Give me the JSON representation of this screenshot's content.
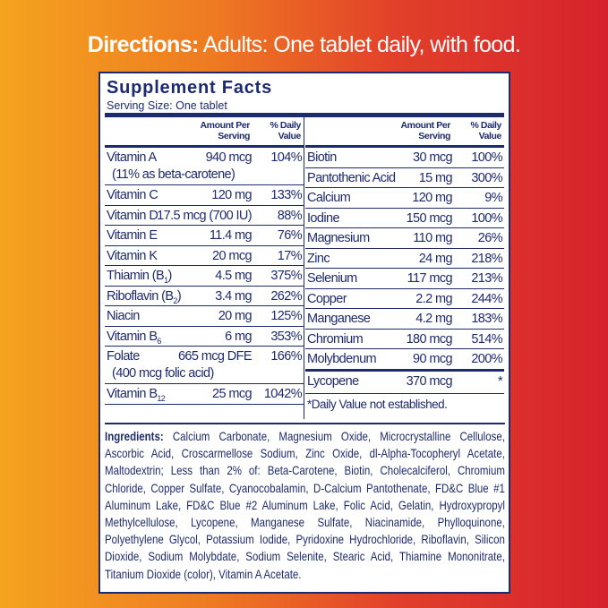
{
  "directions": {
    "label": "Directions:",
    "text": "Adults: One tablet daily, with food."
  },
  "panel": {
    "title": "Supplement Facts",
    "serving": "Serving Size: One tablet",
    "header": {
      "amount": "Amount Per",
      "amount2": "Serving",
      "dv": "% Daily",
      "dv2": "Value"
    },
    "left": [
      {
        "name": "Vitamin A",
        "amount": "940 mcg",
        "dv": "104%",
        "note": "(11% as beta-carotene)"
      },
      {
        "name": "Vitamin C",
        "amount": "120 mg",
        "dv": "133%"
      },
      {
        "name": "Vitamin D",
        "amount": "17.5 mcg (700 IU)",
        "dv": "88%"
      },
      {
        "name": "Vitamin E",
        "amount": "11.4 mg",
        "dv": "76%"
      },
      {
        "name": "Vitamin K",
        "amount": "20 mcg",
        "dv": "17%"
      },
      {
        "name": "Thiamin (B",
        "sub": "1",
        "close": ")",
        "amount": "4.5 mg",
        "dv": "375%"
      },
      {
        "name": "Riboflavin (B",
        "sub": "2",
        "close": ")",
        "amount": "3.4 mg",
        "dv": "262%"
      },
      {
        "name": "Niacin",
        "amount": "20 mg",
        "dv": "125%"
      },
      {
        "name": "Vitamin B",
        "sub": "6",
        "amount": "6 mg",
        "dv": "353%"
      },
      {
        "name": "Folate",
        "amount": "665 mcg DFE",
        "dv": "166%",
        "note": "(400 mcg folic acid)"
      },
      {
        "name": "Vitamin B",
        "sub": "12",
        "amount": "25 mcg",
        "dv": "1042%"
      }
    ],
    "right": [
      {
        "name": "Biotin",
        "amount": "30 mcg",
        "dv": "100%"
      },
      {
        "name": "Pantothenic Acid",
        "amount": "15 mg",
        "dv": "300%"
      },
      {
        "name": "Calcium",
        "amount": "120 mg",
        "dv": "9%"
      },
      {
        "name": "Iodine",
        "amount": "150 mcg",
        "dv": "100%"
      },
      {
        "name": "Magnesium",
        "amount": "110 mg",
        "dv": "26%"
      },
      {
        "name": "Zinc",
        "amount": "24 mg",
        "dv": "218%"
      },
      {
        "name": "Selenium",
        "amount": "117 mcg",
        "dv": "213%"
      },
      {
        "name": "Copper",
        "amount": "2.2 mg",
        "dv": "244%"
      },
      {
        "name": "Manganese",
        "amount": "4.2 mg",
        "dv": "183%"
      },
      {
        "name": "Chromium",
        "amount": "180 mcg",
        "dv": "514%"
      },
      {
        "name": "Molybdenum",
        "amount": "90 mcg",
        "dv": "200%"
      }
    ],
    "lycopene": {
      "name": "Lycopene",
      "amount": "370 mcg",
      "dv": "*"
    },
    "footnote": "*Daily Value not established.",
    "ingredients": {
      "label": "Ingredients:",
      "text": "Calcium Carbonate, Magnesium Oxide, Microcrystalline Cellulose, Ascorbic Acid, Croscarmellose Sodium, Zinc Oxide, dl-Alpha-Tocopheryl Acetate, Maltodextrin; Less than 2% of: Beta-Carotene, Biotin, Cholecalciferol, Chromium Chloride, Copper Sulfate, Cyanocobalamin, D-Calcium Pantothenate, FD&C Blue #1 Aluminum Lake, FD&C Blue #2 Aluminum Lake, Folic Acid, Gelatin, Hydroxypropyl Methylcellulose, Lycopene, Manganese Sulfate, Niacinamide, Phylloquinone, Polyethylene Glycol, Potassium Iodide, Pyridoxine Hydrochloride, Riboflavin, Silicon Dioxide, Sodium Molybdate, Sodium Selenite, Stearic Acid, Thiamine Mononitrate, Titanium Dioxide (color), Vitamin A Acetate."
    }
  },
  "colors": {
    "navy": "#1e2a6e",
    "orange": "#f4a41f",
    "red": "#d6222d"
  }
}
